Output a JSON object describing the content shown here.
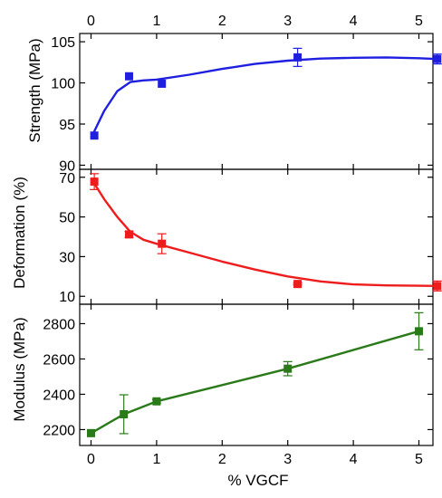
{
  "chart_data": [
    {
      "type": "line",
      "panel": "strength",
      "ylabel": "Strength (MPa)",
      "top_axis_ticks": [
        "0",
        "1",
        "2",
        "3",
        "4",
        "5"
      ],
      "yticks": [
        "90",
        "95",
        "100",
        "105"
      ],
      "ylim": [
        89.5,
        106
      ],
      "color": "#1f1fe0",
      "series": [
        {
          "x": [
            0.05,
            0.58,
            1.08,
            3.15,
            5.28
          ],
          "y": [
            93.6,
            100.8,
            99.9,
            103.1,
            102.9
          ],
          "err": [
            0.0,
            0.0,
            0.0,
            1.1,
            0.6
          ]
        }
      ],
      "fit": {
        "x": [
          0,
          0.2,
          0.4,
          0.6,
          0.8,
          1.0,
          1.5,
          2.0,
          2.5,
          3.0,
          3.5,
          4.0,
          4.5,
          5.0,
          5.28
        ],
        "y": [
          93.3,
          96.6,
          99.0,
          100.1,
          100.3,
          100.4,
          101.0,
          101.7,
          102.3,
          102.7,
          102.95,
          103.05,
          103.1,
          103.0,
          102.9
        ]
      }
    },
    {
      "type": "line",
      "panel": "deformation",
      "ylabel": "Deformation (%)",
      "yticks": [
        "10",
        "30",
        "50",
        "70"
      ],
      "ylim": [
        6,
        74
      ],
      "color": "#ee1c1c",
      "series": [
        {
          "x": [
            0.05,
            0.58,
            1.08,
            3.15,
            5.28
          ],
          "y": [
            67.8,
            41.2,
            36.5,
            16.2,
            15.2
          ],
          "err": [
            4.0,
            1.5,
            5.0,
            0.5,
            2.5
          ]
        }
      ],
      "fit": {
        "x": [
          0,
          0.2,
          0.4,
          0.6,
          0.8,
          1.0,
          1.5,
          2.0,
          2.5,
          3.0,
          3.5,
          4.0,
          4.5,
          5.0,
          5.28
        ],
        "y": [
          69.5,
          59.0,
          50.0,
          42.5,
          38.5,
          36.5,
          32.0,
          27.5,
          23.5,
          20.0,
          17.5,
          16.0,
          15.5,
          15.3,
          15.2
        ]
      }
    },
    {
      "type": "line",
      "panel": "modulus",
      "ylabel": "Modulus (MPa)",
      "xlabel": "% VGCF",
      "xticks": [
        "0",
        "1",
        "2",
        "3",
        "4",
        "5"
      ],
      "yticks": [
        "2200",
        "2400",
        "2600",
        "2800"
      ],
      "ylim": [
        2110,
        2910
      ],
      "color": "#2a7a1a",
      "series": [
        {
          "x": [
            0,
            0.5,
            1.0,
            3.0,
            5.0
          ],
          "y": [
            2180,
            2287,
            2360,
            2545,
            2757
          ],
          "err": [
            0,
            110,
            10,
            40,
            105
          ]
        }
      ]
    }
  ]
}
